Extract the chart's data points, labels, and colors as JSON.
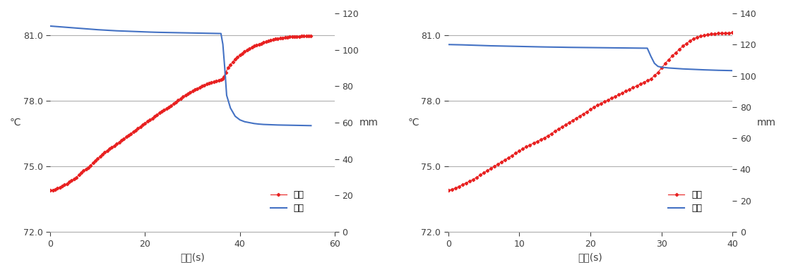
{
  "chart1": {
    "temp_x": [
      0,
      0.5,
      1,
      1.5,
      2,
      2.5,
      3,
      3.5,
      4,
      4.5,
      5,
      5.5,
      6,
      6.5,
      7,
      7.5,
      8,
      8.5,
      9,
      9.5,
      10,
      10.5,
      11,
      11.5,
      12,
      12.5,
      13,
      13.5,
      14,
      14.5,
      15,
      15.5,
      16,
      16.5,
      17,
      17.5,
      18,
      18.5,
      19,
      19.5,
      20,
      20.5,
      21,
      21.5,
      22,
      22.5,
      23,
      23.5,
      24,
      24.5,
      25,
      25.5,
      26,
      26.5,
      27,
      27.5,
      28,
      28.5,
      29,
      29.5,
      30,
      30.5,
      31,
      31.5,
      32,
      32.5,
      33,
      33.5,
      34,
      34.5,
      35,
      35.5,
      36,
      36.3,
      36.6,
      37,
      37.5,
      38,
      38.5,
      39,
      39.5,
      40,
      40.5,
      41,
      41.5,
      42,
      42.5,
      43,
      43.5,
      44,
      44.5,
      45,
      45.5,
      46,
      46.5,
      47,
      47.5,
      48,
      48.5,
      49,
      49.5,
      50,
      50.5,
      51,
      51.5,
      52,
      52.5,
      53,
      53.5,
      54,
      54.5,
      55
    ],
    "temp_y": [
      73.9,
      73.92,
      73.95,
      74.0,
      74.05,
      74.1,
      74.15,
      74.2,
      74.28,
      74.35,
      74.42,
      74.5,
      74.6,
      74.7,
      74.8,
      74.88,
      74.95,
      75.05,
      75.15,
      75.25,
      75.35,
      75.45,
      75.55,
      75.65,
      75.72,
      75.8,
      75.88,
      75.95,
      76.02,
      76.1,
      76.18,
      76.26,
      76.34,
      76.42,
      76.5,
      76.58,
      76.66,
      76.74,
      76.82,
      76.9,
      76.98,
      77.05,
      77.12,
      77.2,
      77.28,
      77.36,
      77.44,
      77.52,
      77.58,
      77.64,
      77.7,
      77.78,
      77.86,
      77.94,
      78.02,
      78.1,
      78.18,
      78.26,
      78.32,
      78.38,
      78.44,
      78.5,
      78.56,
      78.62,
      78.68,
      78.72,
      78.76,
      78.8,
      78.84,
      78.87,
      78.9,
      78.93,
      78.96,
      79.0,
      79.1,
      79.3,
      79.5,
      79.65,
      79.78,
      79.9,
      80.0,
      80.08,
      80.16,
      80.24,
      80.32,
      80.38,
      80.44,
      80.5,
      80.54,
      80.58,
      80.62,
      80.66,
      80.7,
      80.73,
      80.76,
      80.79,
      80.82,
      80.84,
      80.86,
      80.88,
      80.9,
      80.91,
      80.92,
      80.93,
      80.93,
      80.94,
      80.94,
      80.95,
      80.95,
      80.96,
      80.96,
      80.97
    ],
    "disp_x": [
      0,
      1,
      2,
      3,
      4,
      5,
      6,
      7,
      8,
      9,
      10,
      11,
      12,
      13,
      14,
      15,
      16,
      17,
      18,
      19,
      20,
      21,
      22,
      23,
      24,
      25,
      26,
      27,
      28,
      29,
      30,
      31,
      32,
      33,
      34,
      35,
      36,
      36.4,
      36.8,
      37.2,
      38,
      39,
      40,
      41,
      42,
      43,
      44,
      45,
      46,
      47,
      48,
      49,
      50,
      51,
      52,
      53,
      54,
      55
    ],
    "disp_y": [
      113.0,
      112.8,
      112.6,
      112.4,
      112.2,
      112.0,
      111.8,
      111.6,
      111.4,
      111.2,
      111.0,
      110.85,
      110.7,
      110.55,
      110.4,
      110.3,
      110.2,
      110.1,
      110.0,
      109.9,
      109.8,
      109.7,
      109.62,
      109.55,
      109.5,
      109.45,
      109.4,
      109.35,
      109.3,
      109.25,
      109.2,
      109.15,
      109.1,
      109.05,
      109.0,
      108.95,
      108.9,
      103.0,
      90.0,
      75.0,
      68.0,
      63.5,
      61.5,
      60.5,
      60.0,
      59.5,
      59.2,
      59.0,
      58.9,
      58.8,
      58.7,
      58.65,
      58.6,
      58.55,
      58.5,
      58.45,
      58.4,
      58.35
    ],
    "xlim": [
      0,
      60
    ],
    "xticks": [
      0,
      20,
      40,
      60
    ],
    "ylim_temp": [
      72.0,
      82.0
    ],
    "yticks_temp": [
      72.0,
      75.0,
      78.0,
      81.0
    ],
    "ylim_disp": [
      0,
      120
    ],
    "yticks_disp": [
      0,
      20,
      40,
      60,
      80,
      100,
      120
    ],
    "xlabel": "시간(s)",
    "ylabel_left": "℃",
    "ylabel_right": "mm",
    "legend_temp": "온도",
    "legend_disp": "변위"
  },
  "chart2": {
    "temp_x": [
      0,
      0.5,
      1,
      1.5,
      2,
      2.5,
      3,
      3.5,
      4,
      4.5,
      5,
      5.5,
      6,
      6.5,
      7,
      7.5,
      8,
      8.5,
      9,
      9.5,
      10,
      10.5,
      11,
      11.5,
      12,
      12.5,
      13,
      13.5,
      14,
      14.5,
      15,
      15.5,
      16,
      16.5,
      17,
      17.5,
      18,
      18.5,
      19,
      19.5,
      20,
      20.5,
      21,
      21.5,
      22,
      22.5,
      23,
      23.5,
      24,
      24.5,
      25,
      25.5,
      26,
      26.5,
      27,
      27.5,
      28,
      28.5,
      29,
      29.5,
      30,
      30.5,
      31,
      31.5,
      32,
      32.5,
      33,
      33.5,
      34,
      34.5,
      35,
      35.5,
      36,
      36.5,
      37,
      37.5,
      38,
      38.5,
      39,
      39.5,
      40,
      40.5
    ],
    "temp_y": [
      73.9,
      73.95,
      74.0,
      74.08,
      74.16,
      74.24,
      74.32,
      74.4,
      74.5,
      74.6,
      74.7,
      74.8,
      74.9,
      75.0,
      75.1,
      75.2,
      75.3,
      75.4,
      75.5,
      75.6,
      75.7,
      75.8,
      75.9,
      75.98,
      76.06,
      76.14,
      76.22,
      76.3,
      76.4,
      76.5,
      76.6,
      76.7,
      76.8,
      76.9,
      77.0,
      77.1,
      77.2,
      77.3,
      77.4,
      77.5,
      77.6,
      77.7,
      77.8,
      77.88,
      77.96,
      78.04,
      78.12,
      78.2,
      78.28,
      78.36,
      78.44,
      78.52,
      78.6,
      78.68,
      78.76,
      78.84,
      78.92,
      79.0,
      79.15,
      79.3,
      79.5,
      79.7,
      79.88,
      80.05,
      80.2,
      80.35,
      80.5,
      80.62,
      80.74,
      80.84,
      80.9,
      80.95,
      81.0,
      81.03,
      81.05,
      81.07,
      81.08,
      81.09,
      81.1,
      81.11,
      81.12,
      81.12
    ],
    "disp_x": [
      0,
      1,
      2,
      3,
      4,
      5,
      6,
      7,
      8,
      9,
      10,
      11,
      12,
      13,
      14,
      15,
      16,
      17,
      18,
      19,
      20,
      21,
      22,
      23,
      24,
      25,
      26,
      27,
      28,
      28.5,
      29,
      29.5,
      30,
      31,
      32,
      33,
      34,
      35,
      36,
      37,
      38,
      39,
      40,
      41
    ],
    "disp_y": [
      120.0,
      119.9,
      119.8,
      119.65,
      119.5,
      119.35,
      119.2,
      119.1,
      119.0,
      118.9,
      118.8,
      118.7,
      118.6,
      118.5,
      118.42,
      118.35,
      118.28,
      118.2,
      118.15,
      118.1,
      118.05,
      118.0,
      117.95,
      117.9,
      117.85,
      117.8,
      117.75,
      117.7,
      117.65,
      112.5,
      108.0,
      106.0,
      105.5,
      105.0,
      104.7,
      104.4,
      104.2,
      104.0,
      103.8,
      103.65,
      103.5,
      103.4,
      103.3,
      103.2
    ],
    "xlim": [
      0,
      40
    ],
    "xticks": [
      0,
      10,
      20,
      30,
      40
    ],
    "ylim_temp": [
      72.0,
      82.0
    ],
    "yticks_temp": [
      72.0,
      75.0,
      78.0,
      81.0
    ],
    "ylim_disp": [
      0,
      140
    ],
    "yticks_disp": [
      0,
      20,
      40,
      60,
      80,
      100,
      120,
      140
    ],
    "xlabel": "시간(s)",
    "ylabel_left": "℃",
    "ylabel_right": "mm",
    "legend_temp": "온도",
    "legend_disp": "변위"
  },
  "temp_color": "#e82020",
  "disp_color": "#4472c4",
  "bg_color": "#ffffff",
  "grid_color": "#b0b0b0",
  "font_color": "#404040",
  "temp_marker": "D",
  "temp_markersize": 2.2,
  "temp_linewidth": 0.8,
  "disp_linewidth": 1.5,
  "label_fontsize": 10,
  "tick_fontsize": 9,
  "legend_fontsize": 9
}
